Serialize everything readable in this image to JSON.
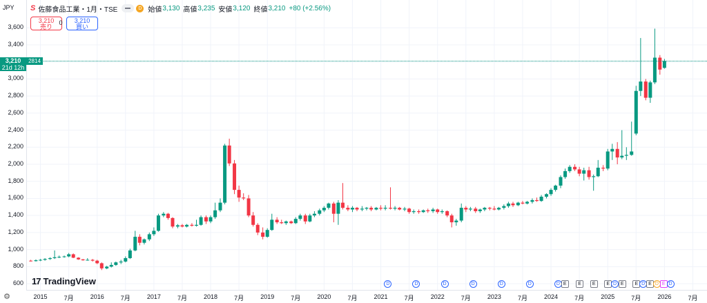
{
  "currency_label": "JPY",
  "legend": {
    "logo": "S",
    "title": "佐藤食品工業・1月・TSE",
    "flag_letter": "D",
    "open_label": "始値",
    "open_value": "3,130",
    "high_label": "高値",
    "high_value": "3,235",
    "low_label": "安値",
    "low_value": "3,120",
    "close_label": "終値",
    "close_value": "3,210",
    "change": "+80 (+2.56%)"
  },
  "trade": {
    "sell_price": "3,210",
    "sell_label": "売り",
    "spread": "0",
    "buy_price": "3,210",
    "buy_label": "買い"
  },
  "price_tag": {
    "price": "3,210",
    "countdown": "21d 12h",
    "ticker_code": "2814"
  },
  "brand": {
    "mark": "17",
    "name": "TradingView"
  },
  "colors": {
    "up": "#089981",
    "down": "#f23645",
    "grid": "#f0f3fa"
  },
  "chart_data": {
    "type": "candlestick",
    "ylim": [
      560,
      3780
    ],
    "yticks": [
      600,
      800,
      1000,
      1200,
      1400,
      1600,
      1800,
      2000,
      2200,
      2400,
      2600,
      2800,
      3000,
      3200,
      3400,
      3600
    ],
    "ytick_labels": [
      "600",
      "800",
      "1,000",
      "1,200",
      "1,400",
      "1,600",
      "1,800",
      "2,000",
      "2,200",
      "2,400",
      "2,600",
      "2,800",
      "3,000",
      "3,200",
      "3,400",
      "3,600"
    ],
    "xlim": [
      2014.75,
      2026.75
    ],
    "xticks": [
      {
        "label": "2015",
        "t": 2015.0
      },
      {
        "label": "7月",
        "t": 2015.5
      },
      {
        "label": "2016",
        "t": 2016.0
      },
      {
        "label": "7月",
        "t": 2016.5
      },
      {
        "label": "2017",
        "t": 2017.0
      },
      {
        "label": "7月",
        "t": 2017.5
      },
      {
        "label": "2018",
        "t": 2018.0
      },
      {
        "label": "7月",
        "t": 2018.5
      },
      {
        "label": "2019",
        "t": 2019.0
      },
      {
        "label": "7月",
        "t": 2019.5
      },
      {
        "label": "2020",
        "t": 2020.0
      },
      {
        "label": "7月",
        "t": 2020.5
      },
      {
        "label": "2021",
        "t": 2021.0
      },
      {
        "label": "7月",
        "t": 2021.5
      },
      {
        "label": "2022",
        "t": 2022.0
      },
      {
        "label": "7月",
        "t": 2022.5
      },
      {
        "label": "2023",
        "t": 2023.0
      },
      {
        "label": "7月",
        "t": 2023.5
      },
      {
        "label": "2024",
        "t": 2024.0
      },
      {
        "label": "7月",
        "t": 2024.5
      },
      {
        "label": "2025",
        "t": 2025.0
      },
      {
        "label": "7月",
        "t": 2025.5
      },
      {
        "label": "2026",
        "t": 2026.0
      },
      {
        "label": "7月",
        "t": 2026.5
      }
    ],
    "current_price": 3210,
    "candles": [
      {
        "t": 2014.83,
        "o": 870,
        "h": 880,
        "l": 860,
        "c": 865
      },
      {
        "t": 2014.92,
        "o": 865,
        "h": 885,
        "l": 860,
        "c": 875
      },
      {
        "t": 2015.0,
        "o": 875,
        "h": 890,
        "l": 865,
        "c": 880
      },
      {
        "t": 2015.08,
        "o": 880,
        "h": 900,
        "l": 870,
        "c": 890
      },
      {
        "t": 2015.17,
        "o": 890,
        "h": 910,
        "l": 880,
        "c": 900
      },
      {
        "t": 2015.25,
        "o": 900,
        "h": 990,
        "l": 890,
        "c": 910
      },
      {
        "t": 2015.33,
        "o": 910,
        "h": 930,
        "l": 900,
        "c": 915
      },
      {
        "t": 2015.42,
        "o": 915,
        "h": 930,
        "l": 905,
        "c": 920
      },
      {
        "t": 2015.5,
        "o": 920,
        "h": 960,
        "l": 910,
        "c": 945
      },
      {
        "t": 2015.58,
        "o": 945,
        "h": 955,
        "l": 900,
        "c": 905
      },
      {
        "t": 2015.67,
        "o": 905,
        "h": 910,
        "l": 880,
        "c": 885
      },
      {
        "t": 2015.75,
        "o": 885,
        "h": 890,
        "l": 870,
        "c": 875
      },
      {
        "t": 2015.83,
        "o": 875,
        "h": 900,
        "l": 870,
        "c": 880
      },
      {
        "t": 2015.92,
        "o": 880,
        "h": 890,
        "l": 860,
        "c": 870
      },
      {
        "t": 2016.0,
        "o": 870,
        "h": 880,
        "l": 830,
        "c": 840
      },
      {
        "t": 2016.08,
        "o": 840,
        "h": 850,
        "l": 760,
        "c": 780
      },
      {
        "t": 2016.17,
        "o": 780,
        "h": 810,
        "l": 770,
        "c": 800
      },
      {
        "t": 2016.25,
        "o": 800,
        "h": 850,
        "l": 790,
        "c": 820
      },
      {
        "t": 2016.33,
        "o": 820,
        "h": 860,
        "l": 810,
        "c": 850
      },
      {
        "t": 2016.42,
        "o": 850,
        "h": 880,
        "l": 830,
        "c": 860
      },
      {
        "t": 2016.5,
        "o": 860,
        "h": 920,
        "l": 850,
        "c": 900
      },
      {
        "t": 2016.58,
        "o": 900,
        "h": 1010,
        "l": 890,
        "c": 990
      },
      {
        "t": 2016.67,
        "o": 990,
        "h": 1220,
        "l": 980,
        "c": 1150
      },
      {
        "t": 2016.75,
        "o": 1150,
        "h": 1180,
        "l": 1050,
        "c": 1080
      },
      {
        "t": 2016.83,
        "o": 1080,
        "h": 1130,
        "l": 1060,
        "c": 1120
      },
      {
        "t": 2016.92,
        "o": 1120,
        "h": 1200,
        "l": 1100,
        "c": 1180
      },
      {
        "t": 2017.0,
        "o": 1180,
        "h": 1260,
        "l": 1160,
        "c": 1220
      },
      {
        "t": 2017.08,
        "o": 1220,
        "h": 1420,
        "l": 1210,
        "c": 1400
      },
      {
        "t": 2017.17,
        "o": 1400,
        "h": 1440,
        "l": 1380,
        "c": 1420
      },
      {
        "t": 2017.25,
        "o": 1420,
        "h": 1430,
        "l": 1350,
        "c": 1370
      },
      {
        "t": 2017.33,
        "o": 1370,
        "h": 1380,
        "l": 1250,
        "c": 1270
      },
      {
        "t": 2017.42,
        "o": 1270,
        "h": 1300,
        "l": 1250,
        "c": 1285
      },
      {
        "t": 2017.5,
        "o": 1285,
        "h": 1300,
        "l": 1260,
        "c": 1270
      },
      {
        "t": 2017.58,
        "o": 1270,
        "h": 1300,
        "l": 1260,
        "c": 1290
      },
      {
        "t": 2017.67,
        "o": 1290,
        "h": 1310,
        "l": 1270,
        "c": 1280
      },
      {
        "t": 2017.75,
        "o": 1280,
        "h": 1350,
        "l": 1270,
        "c": 1290
      },
      {
        "t": 2017.83,
        "o": 1290,
        "h": 1400,
        "l": 1280,
        "c": 1380
      },
      {
        "t": 2017.92,
        "o": 1380,
        "h": 1400,
        "l": 1300,
        "c": 1330
      },
      {
        "t": 2018.0,
        "o": 1330,
        "h": 1400,
        "l": 1310,
        "c": 1380
      },
      {
        "t": 2018.08,
        "o": 1380,
        "h": 1550,
        "l": 1360,
        "c": 1460
      },
      {
        "t": 2018.17,
        "o": 1460,
        "h": 1600,
        "l": 1440,
        "c": 1550
      },
      {
        "t": 2018.25,
        "o": 1550,
        "h": 2240,
        "l": 1530,
        "c": 2220
      },
      {
        "t": 2018.33,
        "o": 2220,
        "h": 2300,
        "l": 1980,
        "c": 2010
      },
      {
        "t": 2018.42,
        "o": 2010,
        "h": 2050,
        "l": 1650,
        "c": 1700
      },
      {
        "t": 2018.5,
        "o": 1700,
        "h": 1750,
        "l": 1560,
        "c": 1610
      },
      {
        "t": 2018.58,
        "o": 1610,
        "h": 1660,
        "l": 1580,
        "c": 1600
      },
      {
        "t": 2018.67,
        "o": 1600,
        "h": 1640,
        "l": 1380,
        "c": 1400
      },
      {
        "t": 2018.75,
        "o": 1400,
        "h": 1440,
        "l": 1270,
        "c": 1290
      },
      {
        "t": 2018.83,
        "o": 1290,
        "h": 1310,
        "l": 1170,
        "c": 1200
      },
      {
        "t": 2018.92,
        "o": 1200,
        "h": 1260,
        "l": 1120,
        "c": 1150
      },
      {
        "t": 2019.0,
        "o": 1150,
        "h": 1250,
        "l": 1140,
        "c": 1230
      },
      {
        "t": 2019.08,
        "o": 1230,
        "h": 1420,
        "l": 1220,
        "c": 1350
      },
      {
        "t": 2019.17,
        "o": 1350,
        "h": 1380,
        "l": 1300,
        "c": 1320
      },
      {
        "t": 2019.25,
        "o": 1320,
        "h": 1350,
        "l": 1300,
        "c": 1310
      },
      {
        "t": 2019.33,
        "o": 1310,
        "h": 1340,
        "l": 1290,
        "c": 1330
      },
      {
        "t": 2019.42,
        "o": 1330,
        "h": 1340,
        "l": 1300,
        "c": 1310
      },
      {
        "t": 2019.5,
        "o": 1310,
        "h": 1380,
        "l": 1300,
        "c": 1360
      },
      {
        "t": 2019.58,
        "o": 1360,
        "h": 1420,
        "l": 1340,
        "c": 1400
      },
      {
        "t": 2019.67,
        "o": 1400,
        "h": 1420,
        "l": 1300,
        "c": 1330
      },
      {
        "t": 2019.75,
        "o": 1330,
        "h": 1420,
        "l": 1320,
        "c": 1400
      },
      {
        "t": 2019.83,
        "o": 1400,
        "h": 1450,
        "l": 1380,
        "c": 1420
      },
      {
        "t": 2019.92,
        "o": 1420,
        "h": 1480,
        "l": 1400,
        "c": 1460
      },
      {
        "t": 2020.0,
        "o": 1460,
        "h": 1510,
        "l": 1440,
        "c": 1490
      },
      {
        "t": 2020.08,
        "o": 1490,
        "h": 1550,
        "l": 1470,
        "c": 1540
      },
      {
        "t": 2020.17,
        "o": 1540,
        "h": 1560,
        "l": 1320,
        "c": 1420
      },
      {
        "t": 2020.25,
        "o": 1420,
        "h": 1580,
        "l": 1290,
        "c": 1550
      },
      {
        "t": 2020.33,
        "o": 1550,
        "h": 1780,
        "l": 1470,
        "c": 1490
      },
      {
        "t": 2020.42,
        "o": 1490,
        "h": 1520,
        "l": 1450,
        "c": 1470
      },
      {
        "t": 2020.5,
        "o": 1470,
        "h": 1510,
        "l": 1440,
        "c": 1490
      },
      {
        "t": 2020.58,
        "o": 1490,
        "h": 1500,
        "l": 1450,
        "c": 1470
      },
      {
        "t": 2020.67,
        "o": 1470,
        "h": 1510,
        "l": 1450,
        "c": 1480
      },
      {
        "t": 2020.75,
        "o": 1480,
        "h": 1500,
        "l": 1460,
        "c": 1490
      },
      {
        "t": 2020.83,
        "o": 1490,
        "h": 1510,
        "l": 1450,
        "c": 1470
      },
      {
        "t": 2020.92,
        "o": 1470,
        "h": 1500,
        "l": 1460,
        "c": 1490
      },
      {
        "t": 2021.0,
        "o": 1490,
        "h": 1520,
        "l": 1460,
        "c": 1480
      },
      {
        "t": 2021.08,
        "o": 1480,
        "h": 1520,
        "l": 1460,
        "c": 1490
      },
      {
        "t": 2021.17,
        "o": 1490,
        "h": 1730,
        "l": 1470,
        "c": 1480
      },
      {
        "t": 2021.25,
        "o": 1480,
        "h": 1510,
        "l": 1460,
        "c": 1490
      },
      {
        "t": 2021.33,
        "o": 1490,
        "h": 1500,
        "l": 1460,
        "c": 1470
      },
      {
        "t": 2021.42,
        "o": 1470,
        "h": 1500,
        "l": 1450,
        "c": 1480
      },
      {
        "t": 2021.5,
        "o": 1480,
        "h": 1490,
        "l": 1420,
        "c": 1440
      },
      {
        "t": 2021.58,
        "o": 1440,
        "h": 1470,
        "l": 1420,
        "c": 1450
      },
      {
        "t": 2021.67,
        "o": 1450,
        "h": 1470,
        "l": 1420,
        "c": 1440
      },
      {
        "t": 2021.75,
        "o": 1440,
        "h": 1470,
        "l": 1430,
        "c": 1460
      },
      {
        "t": 2021.83,
        "o": 1460,
        "h": 1480,
        "l": 1430,
        "c": 1450
      },
      {
        "t": 2021.92,
        "o": 1450,
        "h": 1490,
        "l": 1430,
        "c": 1470
      },
      {
        "t": 2022.0,
        "o": 1470,
        "h": 1480,
        "l": 1420,
        "c": 1440
      },
      {
        "t": 2022.08,
        "o": 1440,
        "h": 1470,
        "l": 1420,
        "c": 1450
      },
      {
        "t": 2022.17,
        "o": 1450,
        "h": 1460,
        "l": 1380,
        "c": 1400
      },
      {
        "t": 2022.25,
        "o": 1400,
        "h": 1420,
        "l": 1260,
        "c": 1320
      },
      {
        "t": 2022.33,
        "o": 1320,
        "h": 1360,
        "l": 1280,
        "c": 1340
      },
      {
        "t": 2022.42,
        "o": 1340,
        "h": 1540,
        "l": 1320,
        "c": 1490
      },
      {
        "t": 2022.5,
        "o": 1490,
        "h": 1510,
        "l": 1440,
        "c": 1470
      },
      {
        "t": 2022.58,
        "o": 1470,
        "h": 1500,
        "l": 1450,
        "c": 1480
      },
      {
        "t": 2022.67,
        "o": 1480,
        "h": 1500,
        "l": 1430,
        "c": 1450
      },
      {
        "t": 2022.75,
        "o": 1450,
        "h": 1480,
        "l": 1430,
        "c": 1470
      },
      {
        "t": 2022.83,
        "o": 1470,
        "h": 1500,
        "l": 1450,
        "c": 1490
      },
      {
        "t": 2022.92,
        "o": 1490,
        "h": 1500,
        "l": 1460,
        "c": 1480
      },
      {
        "t": 2023.0,
        "o": 1480,
        "h": 1510,
        "l": 1460,
        "c": 1470
      },
      {
        "t": 2023.08,
        "o": 1470,
        "h": 1500,
        "l": 1460,
        "c": 1490
      },
      {
        "t": 2023.17,
        "o": 1490,
        "h": 1530,
        "l": 1470,
        "c": 1510
      },
      {
        "t": 2023.25,
        "o": 1510,
        "h": 1560,
        "l": 1490,
        "c": 1540
      },
      {
        "t": 2023.33,
        "o": 1540,
        "h": 1560,
        "l": 1500,
        "c": 1520
      },
      {
        "t": 2023.42,
        "o": 1520,
        "h": 1560,
        "l": 1510,
        "c": 1550
      },
      {
        "t": 2023.5,
        "o": 1550,
        "h": 1570,
        "l": 1530,
        "c": 1540
      },
      {
        "t": 2023.58,
        "o": 1540,
        "h": 1570,
        "l": 1530,
        "c": 1560
      },
      {
        "t": 2023.67,
        "o": 1560,
        "h": 1600,
        "l": 1540,
        "c": 1580
      },
      {
        "t": 2023.75,
        "o": 1580,
        "h": 1610,
        "l": 1560,
        "c": 1570
      },
      {
        "t": 2023.83,
        "o": 1570,
        "h": 1640,
        "l": 1560,
        "c": 1620
      },
      {
        "t": 2023.92,
        "o": 1620,
        "h": 1660,
        "l": 1600,
        "c": 1650
      },
      {
        "t": 2024.0,
        "o": 1650,
        "h": 1720,
        "l": 1630,
        "c": 1700
      },
      {
        "t": 2024.08,
        "o": 1700,
        "h": 1760,
        "l": 1680,
        "c": 1750
      },
      {
        "t": 2024.17,
        "o": 1750,
        "h": 1870,
        "l": 1720,
        "c": 1850
      },
      {
        "t": 2024.25,
        "o": 1850,
        "h": 1950,
        "l": 1830,
        "c": 1920
      },
      {
        "t": 2024.33,
        "o": 1920,
        "h": 1990,
        "l": 1900,
        "c": 1970
      },
      {
        "t": 2024.42,
        "o": 1970,
        "h": 2000,
        "l": 1920,
        "c": 1940
      },
      {
        "t": 2024.5,
        "o": 1940,
        "h": 1970,
        "l": 1860,
        "c": 1890
      },
      {
        "t": 2024.58,
        "o": 1890,
        "h": 1960,
        "l": 1810,
        "c": 1930
      },
      {
        "t": 2024.67,
        "o": 1930,
        "h": 1970,
        "l": 1820,
        "c": 1850
      },
      {
        "t": 2024.75,
        "o": 1850,
        "h": 1880,
        "l": 1690,
        "c": 1860
      },
      {
        "t": 2024.83,
        "o": 1860,
        "h": 2050,
        "l": 1850,
        "c": 1960
      },
      {
        "t": 2024.92,
        "o": 1960,
        "h": 1990,
        "l": 1920,
        "c": 1950
      },
      {
        "t": 2025.0,
        "o": 1950,
        "h": 2180,
        "l": 1930,
        "c": 2150
      },
      {
        "t": 2025.08,
        "o": 2150,
        "h": 2240,
        "l": 2050,
        "c": 2180
      },
      {
        "t": 2025.17,
        "o": 2180,
        "h": 2260,
        "l": 2000,
        "c": 2080
      },
      {
        "t": 2025.25,
        "o": 2080,
        "h": 2400,
        "l": 2060,
        "c": 2100
      },
      {
        "t": 2025.33,
        "o": 2100,
        "h": 2200,
        "l": 2050,
        "c": 2110
      },
      {
        "t": 2025.42,
        "o": 2110,
        "h": 2500,
        "l": 2100,
        "c": 2150
      },
      {
        "t": 2025.5,
        "o": 2360,
        "h": 2920,
        "l": 2340,
        "c": 2860
      },
      {
        "t": 2025.58,
        "o": 2860,
        "h": 3480,
        "l": 2800,
        "c": 2970
      },
      {
        "t": 2025.67,
        "o": 2970,
        "h": 3000,
        "l": 2750,
        "c": 2780
      },
      {
        "t": 2025.75,
        "o": 2780,
        "h": 2980,
        "l": 2720,
        "c": 2960
      },
      {
        "t": 2025.83,
        "o": 2960,
        "h": 3590,
        "l": 2940,
        "c": 3250
      },
      {
        "t": 2025.92,
        "o": 3250,
        "h": 3280,
        "l": 3050,
        "c": 3110
      },
      {
        "t": 2026.0,
        "o": 3130,
        "h": 3235,
        "l": 3120,
        "c": 3210
      }
    ]
  },
  "events": [
    {
      "kind": "div",
      "t": 2021.12,
      "glyph": "D"
    },
    {
      "kind": "div",
      "t": 2021.62,
      "glyph": "D"
    },
    {
      "kind": "div",
      "t": 2022.12,
      "glyph": "D"
    },
    {
      "kind": "div",
      "t": 2022.62,
      "glyph": "D"
    },
    {
      "kind": "div",
      "t": 2023.12,
      "glyph": "D"
    },
    {
      "kind": "div",
      "t": 2023.62,
      "glyph": "D"
    },
    {
      "kind": "div",
      "t": 2024.12,
      "glyph": "D"
    },
    {
      "kind": "earn",
      "t": 2024.24,
      "glyph": "E"
    },
    {
      "kind": "earn",
      "t": 2024.5,
      "glyph": "E"
    },
    {
      "kind": "earn",
      "t": 2024.75,
      "glyph": "E"
    },
    {
      "kind": "earn",
      "t": 2025.0,
      "glyph": "E"
    },
    {
      "kind": "div",
      "t": 2025.12,
      "glyph": "D"
    },
    {
      "kind": "earn",
      "t": 2025.25,
      "glyph": "E"
    },
    {
      "kind": "earn",
      "t": 2025.5,
      "glyph": "E"
    },
    {
      "kind": "div",
      "t": 2025.62,
      "glyph": "D"
    },
    {
      "kind": "earn",
      "t": 2025.74,
      "glyph": "E"
    },
    {
      "kind": "misc",
      "t": 2025.86,
      "glyph": "D"
    },
    {
      "kind": "split",
      "t": 2025.98,
      "glyph": "E"
    },
    {
      "kind": "div",
      "t": 2026.1,
      "glyph": "D"
    }
  ]
}
